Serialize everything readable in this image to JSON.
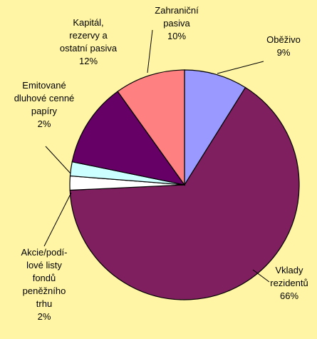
{
  "chart_data": {
    "type": "pie",
    "categories": [
      "Oběživo",
      "Vklady\nrezidentů",
      "Akcie/podí-\nlové listy\nfondů\npeněžního\ntrhu",
      "Emitované\ndluhové cenné\npapíry",
      "Kapitál,\nrezervy a\nostatní pasiva",
      "Zahraniční\npasiva"
    ],
    "values": [
      9,
      66,
      2,
      2,
      12,
      10
    ],
    "value_labels": [
      "9%",
      "66%",
      "2%",
      "2%",
      "12%",
      "10%"
    ],
    "colors": [
      "#9999ff",
      "#7f1f5f",
      "#ffffff",
      "#ccffff",
      "#660066",
      "#ff8080"
    ]
  }
}
